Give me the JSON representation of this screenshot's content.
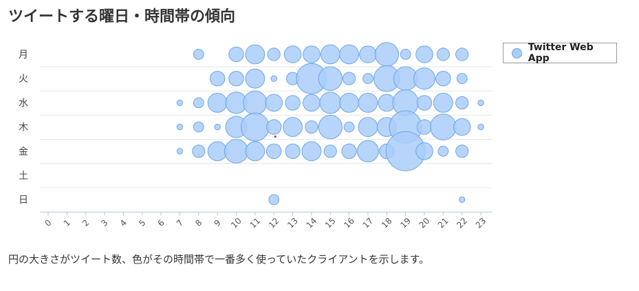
{
  "page": {
    "title": "ツイートする曜日・時間帯の傾向",
    "caption": "円の大きさがツイート数、色がその時間帯で一番多く使っていたクライアントを示します。"
  },
  "chart_data": {
    "type": "scatter",
    "title": "ツイートする曜日・時間帯の傾向",
    "x_ticks": [
      "0",
      "1",
      "2",
      "3",
      "4",
      "5",
      "6",
      "7",
      "8",
      "9",
      "10",
      "11",
      "12",
      "13",
      "14",
      "15",
      "16",
      "17",
      "18",
      "19",
      "20",
      "21",
      "22",
      "23"
    ],
    "y_ticks": [
      "月",
      "火",
      "水",
      "木",
      "金",
      "土",
      "日"
    ],
    "xlim": [
      0,
      23
    ],
    "grid": true,
    "legend": {
      "position": "top-right",
      "entries": [
        "Twitter Web App"
      ]
    },
    "colors": {
      "fill": "#aacdfa",
      "stroke": "#6ea6e6",
      "accent": "#c0304a"
    },
    "size_meaning": "tweet count (relative)",
    "series": [
      {
        "name": "Twitter Web App",
        "points": [
          {
            "day": "月",
            "hour": 8,
            "size": 3
          },
          {
            "day": "月",
            "hour": 10,
            "size": 5
          },
          {
            "day": "月",
            "hour": 11,
            "size": 7
          },
          {
            "day": "月",
            "hour": 12,
            "size": 4
          },
          {
            "day": "月",
            "hour": 13,
            "size": 6
          },
          {
            "day": "月",
            "hour": 14,
            "size": 6
          },
          {
            "day": "月",
            "hour": 15,
            "size": 7
          },
          {
            "day": "月",
            "hour": 16,
            "size": 7
          },
          {
            "day": "月",
            "hour": 17,
            "size": 6
          },
          {
            "day": "月",
            "hour": 18,
            "size": 9
          },
          {
            "day": "月",
            "hour": 19,
            "size": 3
          },
          {
            "day": "月",
            "hour": 20,
            "size": 6
          },
          {
            "day": "月",
            "hour": 21,
            "size": 4
          },
          {
            "day": "月",
            "hour": 22,
            "size": 4
          },
          {
            "day": "火",
            "hour": 9,
            "size": 5
          },
          {
            "day": "火",
            "hour": 10,
            "size": 5
          },
          {
            "day": "火",
            "hour": 11,
            "size": 7
          },
          {
            "day": "火",
            "hour": 12,
            "size": 1
          },
          {
            "day": "火",
            "hour": 13,
            "size": 4
          },
          {
            "day": "火",
            "hour": 14,
            "size": 12
          },
          {
            "day": "火",
            "hour": 15,
            "size": 9
          },
          {
            "day": "火",
            "hour": 16,
            "size": 4
          },
          {
            "day": "火",
            "hour": 17,
            "size": 3
          },
          {
            "day": "火",
            "hour": 18,
            "size": 10
          },
          {
            "day": "火",
            "hour": 19,
            "size": 9
          },
          {
            "day": "火",
            "hour": 20,
            "size": 8
          },
          {
            "day": "火",
            "hour": 21,
            "size": 5
          },
          {
            "day": "火",
            "hour": 22,
            "size": 3
          },
          {
            "day": "水",
            "hour": 7,
            "size": 1
          },
          {
            "day": "水",
            "hour": 8,
            "size": 3
          },
          {
            "day": "水",
            "hour": 9,
            "size": 7
          },
          {
            "day": "水",
            "hour": 10,
            "size": 8
          },
          {
            "day": "水",
            "hour": 11,
            "size": 9
          },
          {
            "day": "水",
            "hour": 12,
            "size": 6
          },
          {
            "day": "水",
            "hour": 13,
            "size": 5
          },
          {
            "day": "水",
            "hour": 14,
            "size": 6
          },
          {
            "day": "水",
            "hour": 15,
            "size": 8
          },
          {
            "day": "水",
            "hour": 16,
            "size": 7
          },
          {
            "day": "水",
            "hour": 17,
            "size": 7
          },
          {
            "day": "水",
            "hour": 18,
            "size": 6
          },
          {
            "day": "水",
            "hour": 19,
            "size": 10
          },
          {
            "day": "水",
            "hour": 20,
            "size": 5
          },
          {
            "day": "水",
            "hour": 21,
            "size": 7
          },
          {
            "day": "水",
            "hour": 22,
            "size": 4
          },
          {
            "day": "水",
            "hour": 23,
            "size": 1
          },
          {
            "day": "木",
            "hour": 7,
            "size": 1
          },
          {
            "day": "木",
            "hour": 8,
            "size": 3
          },
          {
            "day": "木",
            "hour": 9,
            "size": 1
          },
          {
            "day": "木",
            "hour": 10,
            "size": 8
          },
          {
            "day": "木",
            "hour": 11,
            "size": 11
          },
          {
            "day": "木",
            "hour": 12,
            "size": 5
          },
          {
            "day": "木",
            "hour": 13,
            "size": 7
          },
          {
            "day": "木",
            "hour": 14,
            "size": 4
          },
          {
            "day": "木",
            "hour": 15,
            "size": 9
          },
          {
            "day": "木",
            "hour": 16,
            "size": 3
          },
          {
            "day": "木",
            "hour": 17,
            "size": 7
          },
          {
            "day": "木",
            "hour": 18,
            "size": 7
          },
          {
            "day": "木",
            "hour": 19,
            "size": 13
          },
          {
            "day": "木",
            "hour": 20,
            "size": 5
          },
          {
            "day": "木",
            "hour": 21,
            "size": 10
          },
          {
            "day": "木",
            "hour": 22,
            "size": 6
          },
          {
            "day": "木",
            "hour": 23,
            "size": 1
          },
          {
            "day": "金",
            "hour": 7,
            "size": 1
          },
          {
            "day": "金",
            "hour": 8,
            "size": 4
          },
          {
            "day": "金",
            "hour": 9,
            "size": 7
          },
          {
            "day": "金",
            "hour": 10,
            "size": 9
          },
          {
            "day": "金",
            "hour": 11,
            "size": 7
          },
          {
            "day": "金",
            "hour": 12,
            "size": 5
          },
          {
            "day": "金",
            "hour": 13,
            "size": 5
          },
          {
            "day": "金",
            "hour": 14,
            "size": 7
          },
          {
            "day": "金",
            "hour": 15,
            "size": 4
          },
          {
            "day": "金",
            "hour": 16,
            "size": 5
          },
          {
            "day": "金",
            "hour": 17,
            "size": 8
          },
          {
            "day": "金",
            "hour": 18,
            "size": 5
          },
          {
            "day": "金",
            "hour": 19,
            "size": 16
          },
          {
            "day": "金",
            "hour": 20,
            "size": 6
          },
          {
            "day": "金",
            "hour": 21,
            "size": 3
          },
          {
            "day": "金",
            "hour": 22,
            "size": 4
          },
          {
            "day": "日",
            "hour": 12,
            "size": 3
          },
          {
            "day": "日",
            "hour": 22,
            "size": 1
          }
        ]
      }
    ]
  }
}
